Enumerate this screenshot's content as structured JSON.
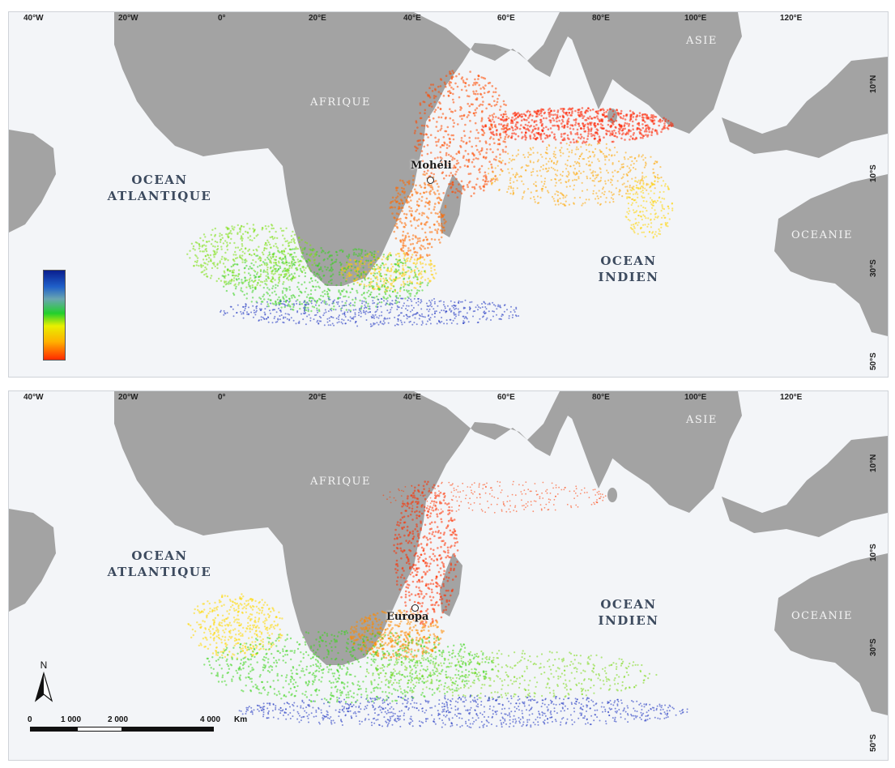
{
  "colors": {
    "land": "#a3a3a3",
    "ocean": "#f3f5f8",
    "legend_gradient": [
      "#0a1f8f",
      "#1f5fc9",
      "#6aa6b0",
      "#22d02c",
      "#e7f000",
      "#ffb000",
      "#ff2a00"
    ]
  },
  "longitude_ticks": [
    "40°W",
    "20°W",
    "0°",
    "20°E",
    "40°E",
    "60°E",
    "80°E",
    "100°E",
    "120°E"
  ],
  "latitude_ticks": [
    "10°N",
    "10°S",
    "30°S",
    "50°S"
  ],
  "continents": {
    "africa": "AFRIQUE",
    "asia": "ASIE",
    "oceania": "OCEANIE"
  },
  "oceans": {
    "atlantic_line1": "OCEAN",
    "atlantic_line2": "ATLANTIQUE",
    "indian_line1": "OCEAN",
    "indian_line2": "INDIEN"
  },
  "panels": [
    {
      "site": "Mohéli"
    },
    {
      "site": "Europa"
    }
  ],
  "north_arrow": "N",
  "scale_bar": {
    "labels": [
      "0",
      "1 000",
      "2 000",
      "4 000"
    ],
    "unit": "Km"
  }
}
